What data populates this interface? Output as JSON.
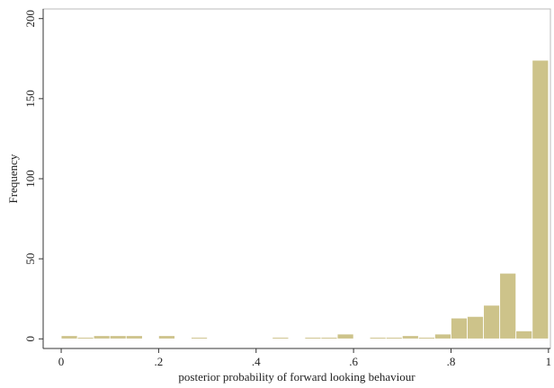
{
  "chart_data": {
    "type": "histogram",
    "x_label": "posterior probability of forward looking behaviour",
    "y_label": "Frequency",
    "bins": [
      0,
      0.0333,
      0.0667,
      0.1,
      0.1333,
      0.1667,
      0.2,
      0.2333,
      0.2667,
      0.3,
      0.3333,
      0.3667,
      0.4,
      0.4333,
      0.4667,
      0.5,
      0.5333,
      0.5667,
      0.6,
      0.6333,
      0.6667,
      0.7,
      0.7333,
      0.7667,
      0.8,
      0.8333,
      0.8667,
      0.9,
      0.9333,
      0.9667,
      1
    ],
    "values": [
      2,
      1,
      2,
      2,
      2,
      0,
      2,
      0,
      1,
      0,
      0,
      0,
      0,
      1,
      0,
      1,
      1,
      3,
      0,
      1,
      1,
      2,
      1,
      3,
      13,
      14,
      21,
      41,
      5,
      174
    ],
    "color": "#cdc38a",
    "xlim": [
      -0.037,
      1.004
    ],
    "ylim": [
      -6,
      206
    ],
    "xticks": [
      0,
      {
        "value": 0.2,
        "label": ".2"
      },
      {
        "value": 0.4,
        "label": ".4"
      },
      {
        "value": 0.6,
        "label": ".6"
      },
      {
        "value": 0.8,
        "label": ".8"
      },
      1
    ],
    "yticks": [
      0,
      50,
      100,
      150,
      200
    ]
  }
}
